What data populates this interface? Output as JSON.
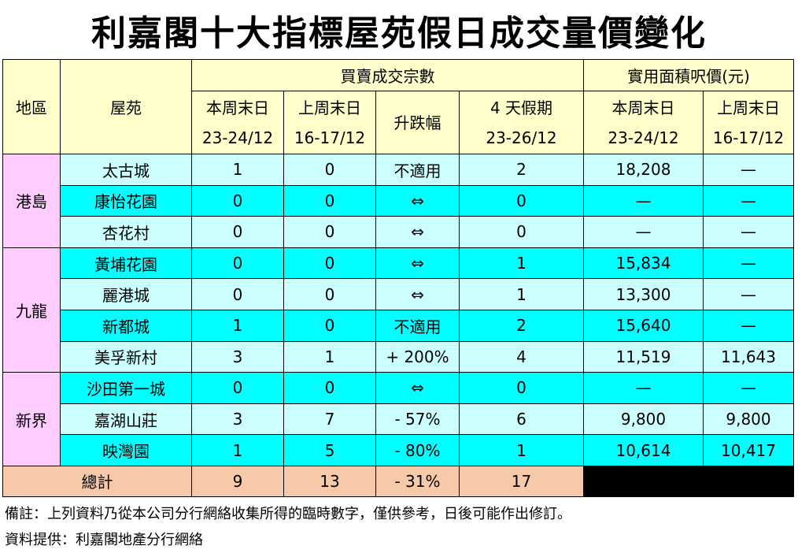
{
  "title": "利嘉閣十大指標屋苑假日成交量價變化",
  "header": {
    "district": "地區",
    "estate": "屋苑",
    "group_transactions": "買賣成交宗數",
    "group_price": "實用面積呎價(元)",
    "this_weekend": "本周末日",
    "this_weekend_dates": "23-24/12",
    "last_weekend": "上周末日",
    "last_weekend_dates": "16-17/12",
    "change": "升跌幅",
    "four_day": "4 天假期",
    "four_day_dates": "23-26/12",
    "price_this_weekend": "本周末日",
    "price_this_weekend_dates": "23-24/12",
    "price_last_weekend": "上周末日",
    "price_last_weekend_dates": "16-17/12"
  },
  "rows": [
    {
      "district": "港島",
      "estate": "太古城",
      "this_week": "1",
      "last_week": "0",
      "change": "不適用",
      "four_day": "2",
      "price_this": "18,208",
      "price_last": "—"
    },
    {
      "district": "",
      "estate": "康怡花園",
      "this_week": "0",
      "last_week": "0",
      "change": "⇔",
      "four_day": "0",
      "price_this": "—",
      "price_last": "—"
    },
    {
      "district": "",
      "estate": "杏花村",
      "this_week": "0",
      "last_week": "0",
      "change": "⇔",
      "four_day": "0",
      "price_this": "—",
      "price_last": "—"
    },
    {
      "district": "九龍",
      "estate": "黃埔花園",
      "this_week": "0",
      "last_week": "0",
      "change": "⇔",
      "four_day": "1",
      "price_this": "15,834",
      "price_last": "—"
    },
    {
      "district": "",
      "estate": "麗港城",
      "this_week": "0",
      "last_week": "0",
      "change": "⇔",
      "four_day": "1",
      "price_this": "13,300",
      "price_last": "—"
    },
    {
      "district": "",
      "estate": "新都城",
      "this_week": "1",
      "last_week": "0",
      "change": "不適用",
      "four_day": "2",
      "price_this": "15,640",
      "price_last": "—"
    },
    {
      "district": "",
      "estate": "美孚新村",
      "this_week": "3",
      "last_week": "1",
      "change": "+ 200%",
      "four_day": "4",
      "price_this": "11,519",
      "price_last": "11,643"
    },
    {
      "district": "新界",
      "estate": "沙田第一城",
      "this_week": "0",
      "last_week": "0",
      "change": "⇔",
      "four_day": "0",
      "price_this": "—",
      "price_last": "—"
    },
    {
      "district": "",
      "estate": "嘉湖山莊",
      "this_week": "3",
      "last_week": "7",
      "change": "- 57%",
      "four_day": "6",
      "price_this": "9,800",
      "price_last": "9,800"
    },
    {
      "district": "",
      "estate": "映灣園",
      "this_week": "1",
      "last_week": "5",
      "change": "- 80%",
      "four_day": "1",
      "price_this": "10,614",
      "price_last": "10,417"
    }
  ],
  "total": {
    "label": "總計",
    "this_week": "9",
    "last_week": "13",
    "change": "- 31%",
    "four_day": "17"
  },
  "notes": {
    "remark": "備註：上列資料乃從本公司分行網絡收集所得的臨時數字，僅供參考，日後可能作出修訂。",
    "source": "資料提供：利嘉閣地產分行網絡"
  },
  "colors": {
    "header_bg": "#ffffcc",
    "district_bg": "#ffccff",
    "row_light": "#ccffff",
    "row_cyan": "#00ffff",
    "total_bg": "#f6caa8",
    "filler": "#000000"
  }
}
